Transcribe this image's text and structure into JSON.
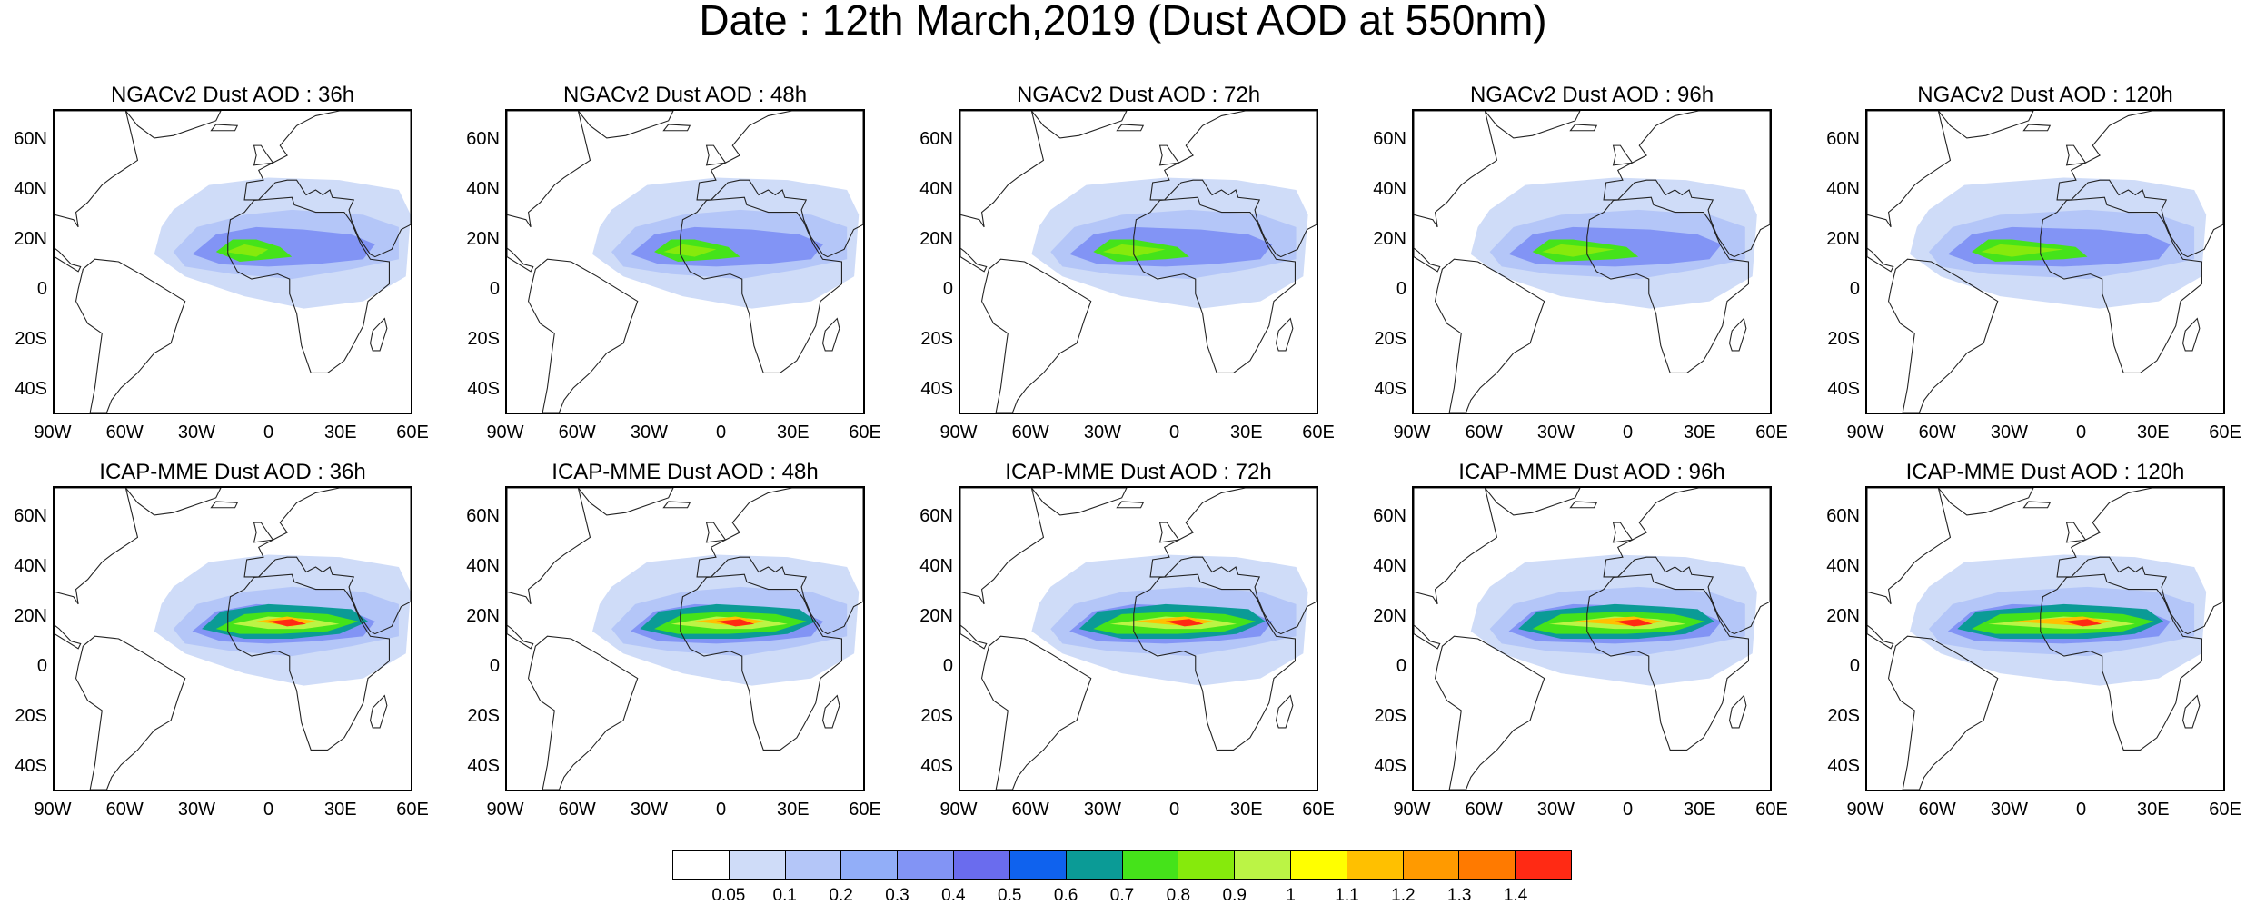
{
  "title": "Date : 12th March,2019 (Dust AOD at 550nm)",
  "panels": [
    {
      "title": "NGACv2 Dust AOD : 36h",
      "model": "NGACv2",
      "lead_hours": 36
    },
    {
      "title": "NGACv2 Dust AOD : 48h",
      "model": "NGACv2",
      "lead_hours": 48
    },
    {
      "title": "NGACv2 Dust AOD : 72h",
      "model": "NGACv2",
      "lead_hours": 72
    },
    {
      "title": "NGACv2 Dust AOD : 96h",
      "model": "NGACv2",
      "lead_hours": 96
    },
    {
      "title": "NGACv2 Dust AOD : 120h",
      "model": "NGACv2",
      "lead_hours": 120
    },
    {
      "title": "ICAP-MME Dust AOD : 36h",
      "model": "ICAP-MME",
      "lead_hours": 36
    },
    {
      "title": "ICAP-MME Dust AOD : 48h",
      "model": "ICAP-MME",
      "lead_hours": 48
    },
    {
      "title": "ICAP-MME Dust AOD : 72h",
      "model": "ICAP-MME",
      "lead_hours": 72
    },
    {
      "title": "ICAP-MME Dust AOD : 96h",
      "model": "ICAP-MME",
      "lead_hours": 96
    },
    {
      "title": "ICAP-MME Dust AOD : 120h",
      "model": "ICAP-MME",
      "lead_hours": 120
    }
  ],
  "lat_ticks": [
    "60N",
    "40N",
    "20N",
    "0",
    "20S",
    "40S"
  ],
  "lon_ticks": [
    "90W",
    "60W",
    "30W",
    "0",
    "30E",
    "60E"
  ],
  "map_extent": {
    "lon": [
      -90,
      60
    ],
    "lat": [
      -50,
      72
    ]
  },
  "colorbar": {
    "labels": [
      "0.05",
      "0.1",
      "0.2",
      "0.3",
      "0.4",
      "0.5",
      "0.6",
      "0.7",
      "0.8",
      "0.9",
      "1",
      "1.1",
      "1.2",
      "1.3",
      "1.4"
    ],
    "colors": [
      "#ffffff",
      "#cfdcf8",
      "#b4c6f8",
      "#92aef8",
      "#8294f5",
      "#6a6cee",
      "#0f62ee",
      "#0b9b96",
      "#45e31a",
      "#86ea0c",
      "#bbf445",
      "#ffff00",
      "#ffc000",
      "#ff9a00",
      "#ff7a00",
      "#ff2a14"
    ]
  }
}
